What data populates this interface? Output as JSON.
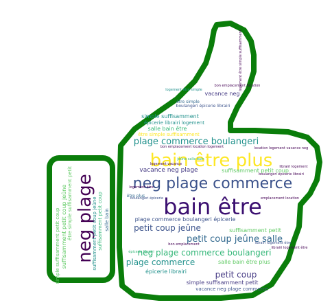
{
  "colors": {
    "outline": "#0a7d0a",
    "background": "#ffffff",
    "palette": [
      "#440154",
      "#3b528b",
      "#21918c",
      "#5ec962",
      "#fde725",
      "#31688e",
      "#35b779",
      "#443983"
    ]
  },
  "words": [
    {
      "text": "bain être plus",
      "color": "#fde725"
    },
    {
      "text": "bain être",
      "color": "#3b0f70"
    },
    {
      "text": "neg plage commerce",
      "color": "#3b528b"
    },
    {
      "text": "neg plage",
      "color": "#440154"
    },
    {
      "text": "plage commerce boulangeri",
      "color": "#21918c"
    },
    {
      "text": "petit coup jeûne salle",
      "color": "#31688e"
    },
    {
      "text": "neg plage commerce boulangeri",
      "color": "#35b779"
    },
    {
      "text": "petit coup jeûne",
      "color": "#3b528b"
    },
    {
      "text": "plage commerce",
      "color": "#21918c"
    },
    {
      "text": "petit coup",
      "color": "#443983"
    },
    {
      "text": "vacance neg plage",
      "color": "#443983"
    },
    {
      "text": "suffisamment petit coup",
      "color": "#5ec962"
    },
    {
      "text": "suffisamment petit",
      "color": "#5ec962"
    },
    {
      "text": "salle bain être plus",
      "color": "#5ec962"
    },
    {
      "text": "plage commerce boulangeri épicerie",
      "color": "#3b528b"
    },
    {
      "text": "épicerie librairi",
      "color": "#21918c"
    },
    {
      "text": "simple suffisamment petit",
      "color": "#443983"
    },
    {
      "text": "vacance neg plage commerce",
      "color": "#3b528b"
    },
    {
      "text": "simple suffisamment",
      "color": "#21918c"
    },
    {
      "text": "salle bain être",
      "color": "#35b779"
    },
    {
      "text": "être simple suffisamment",
      "color": "#fde725"
    },
    {
      "text": "épicerie librairi logement",
      "color": "#21918c"
    },
    {
      "text": "vacance neg",
      "color": "#443983"
    },
    {
      "text": "boulangeri épicerie librairi",
      "color": "#3b528b"
    },
    {
      "text": "être simple",
      "color": "#31688e"
    },
    {
      "text": "bon emplacement location logement",
      "color": "#440154"
    },
    {
      "text": "suffisamment petit coup jeûne",
      "color": "#5ec962"
    },
    {
      "text": "suffisamment petit coup",
      "color": "#35b779"
    },
    {
      "text": "simple suffisamment petit coup",
      "color": "#5ec962"
    },
    {
      "text": "suffisamment petit coup jeûne",
      "color": "#21918c"
    },
    {
      "text": "salle bain",
      "color": "#31688e"
    },
    {
      "text": "boulangeri épicerie",
      "color": "#3b528b"
    },
    {
      "text": "logement être",
      "color": "#440154"
    },
    {
      "text": "être plus",
      "color": "#31688e"
    },
    {
      "text": "emplacement location",
      "color": "#440154"
    },
    {
      "text": "librairi logement être",
      "color": "#3b528b"
    },
    {
      "text": "boulangeri épicerie librairi",
      "color": "#440154"
    },
    {
      "text": "location logement vacance neg",
      "color": "#440154"
    },
    {
      "text": "bon emplacement location",
      "color": "#440154"
    },
    {
      "text": "logement être simple",
      "color": "#21918c"
    },
    {
      "text": "librairi logement",
      "color": "#440154"
    },
    {
      "text": "jeûne salle bain",
      "color": "#35b779"
    },
    {
      "text": "bon emplacement",
      "color": "#440154"
    },
    {
      "text": "logement être simple suffisamment",
      "color": "#440154"
    },
    {
      "text": "être simple suffisamment petit",
      "color": "#5ec962"
    },
    {
      "text": "épicerie librairi",
      "color": "#35b779"
    },
    {
      "text": "librairi logement être",
      "color": "#440154"
    },
    {
      "text": "logement vacance",
      "color": "#440154"
    }
  ]
}
